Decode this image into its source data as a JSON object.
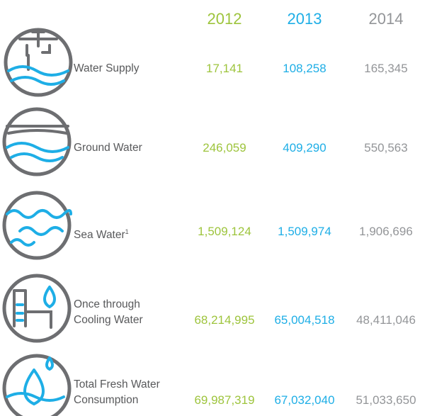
{
  "table": {
    "columns": [
      "2012",
      "2013",
      "2014"
    ],
    "rows": [
      {
        "lines": [
          "Water Supply"
        ],
        "values": [
          "17,141",
          "108,258",
          "165,345"
        ]
      },
      {
        "lines": [
          "Ground Water"
        ],
        "values": [
          "246,059",
          "409,290",
          "550,563"
        ]
      },
      {
        "lines": [
          "Sea Water"
        ],
        "footnote": "1",
        "values": [
          "1,509,124",
          "1,509,974",
          "1,906,696"
        ]
      },
      {
        "lines": [
          "Once through",
          "Cooling Water"
        ],
        "values": [
          "68,214,995",
          "65,004,518",
          "48,411,046"
        ]
      },
      {
        "lines": [
          "Total Fresh Water",
          "Consumption"
        ],
        "values": [
          "69,987,319",
          "67,032,040",
          "51,033,650"
        ]
      }
    ]
  }
}
